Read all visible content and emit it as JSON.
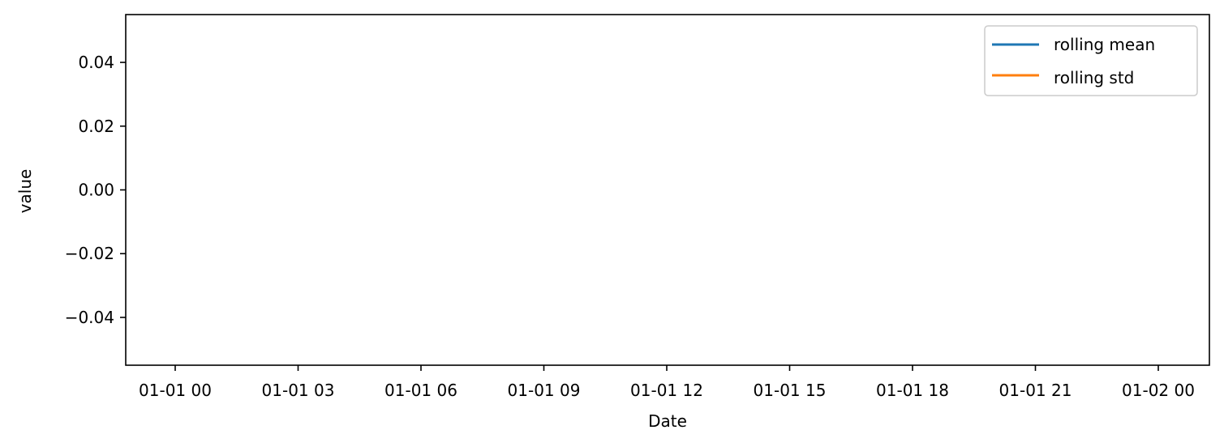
{
  "chart_data": {
    "type": "line",
    "title": "",
    "xlabel": "Date",
    "ylabel": "value",
    "x_ticks": [
      "01-01 00",
      "01-01 03",
      "01-01 06",
      "01-01 09",
      "01-01 12",
      "01-01 15",
      "01-01 18",
      "01-01 21",
      "01-02 00"
    ],
    "y_ticks": [
      "0.04",
      "0.02",
      "0.00",
      "−0.02",
      "−0.04"
    ],
    "y_tick_values": [
      0.04,
      0.02,
      0.0,
      -0.02,
      -0.04
    ],
    "ylim": [
      -0.055,
      0.055
    ],
    "grid": false,
    "legend_position": "top-right",
    "series": [
      {
        "name": "rolling mean",
        "color": "#1f77b4",
        "x": [],
        "values": []
      },
      {
        "name": "rolling std",
        "color": "#ff7f0e",
        "x": [],
        "values": []
      }
    ]
  }
}
